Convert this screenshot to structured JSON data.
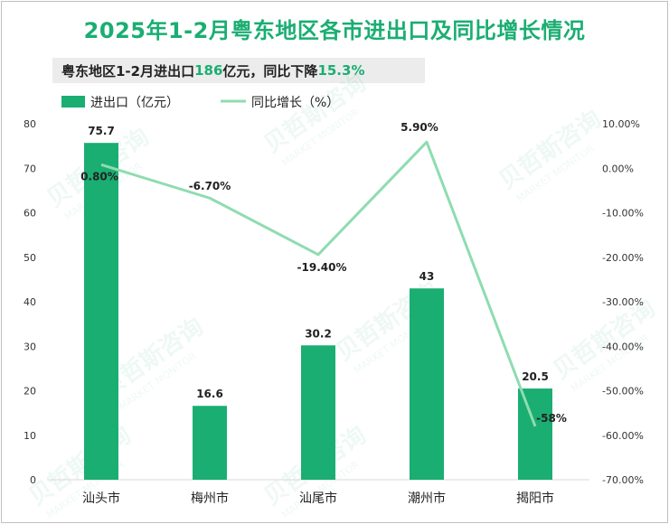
{
  "title": "2025年1-2月粤东地区各市进出口及同比增长情况",
  "subtitle": {
    "prefix": "粤东地区1-2月进出口",
    "value": "186",
    "middle": "亿元，同比下降",
    "pct": "15.3%"
  },
  "chart_data": {
    "type": "bar",
    "categories": [
      "汕头市",
      "梅州市",
      "汕尾市",
      "潮州市",
      "揭阳市"
    ],
    "series": [
      {
        "name": "进出口（亿元）",
        "type": "bar",
        "axis": "left",
        "values": [
          75.7,
          16.6,
          30.2,
          43,
          20.5
        ],
        "labels": [
          "75.7",
          "16.6",
          "30.2",
          "43",
          "20.5"
        ]
      },
      {
        "name": "同比增长（%）",
        "type": "line",
        "axis": "right",
        "values": [
          0.8,
          -6.7,
          -19.4,
          5.9,
          -58
        ],
        "labels": [
          "0.80%",
          "-6.70%",
          "-19.40%",
          "5.90%",
          "-58%"
        ]
      }
    ],
    "ylim_left": [
      0,
      80
    ],
    "yticks_left": [
      "0",
      "10",
      "20",
      "30",
      "40",
      "50",
      "60",
      "70",
      "80"
    ],
    "ylim_right": [
      -70,
      10
    ],
    "yticks_right": [
      "-70.00%",
      "-60.00%",
      "-50.00%",
      "-40.00%",
      "-30.00%",
      "-20.00%",
      "-10.00%",
      "0.00%",
      "10.00%"
    ],
    "legend_position": "top-left",
    "colors": {
      "bar": "#1aae72",
      "line": "#8fdcb0",
      "highlight": "#1aae72"
    }
  },
  "watermark": {
    "cn": "贝哲斯咨询",
    "en": "MARKET MONITOR"
  }
}
